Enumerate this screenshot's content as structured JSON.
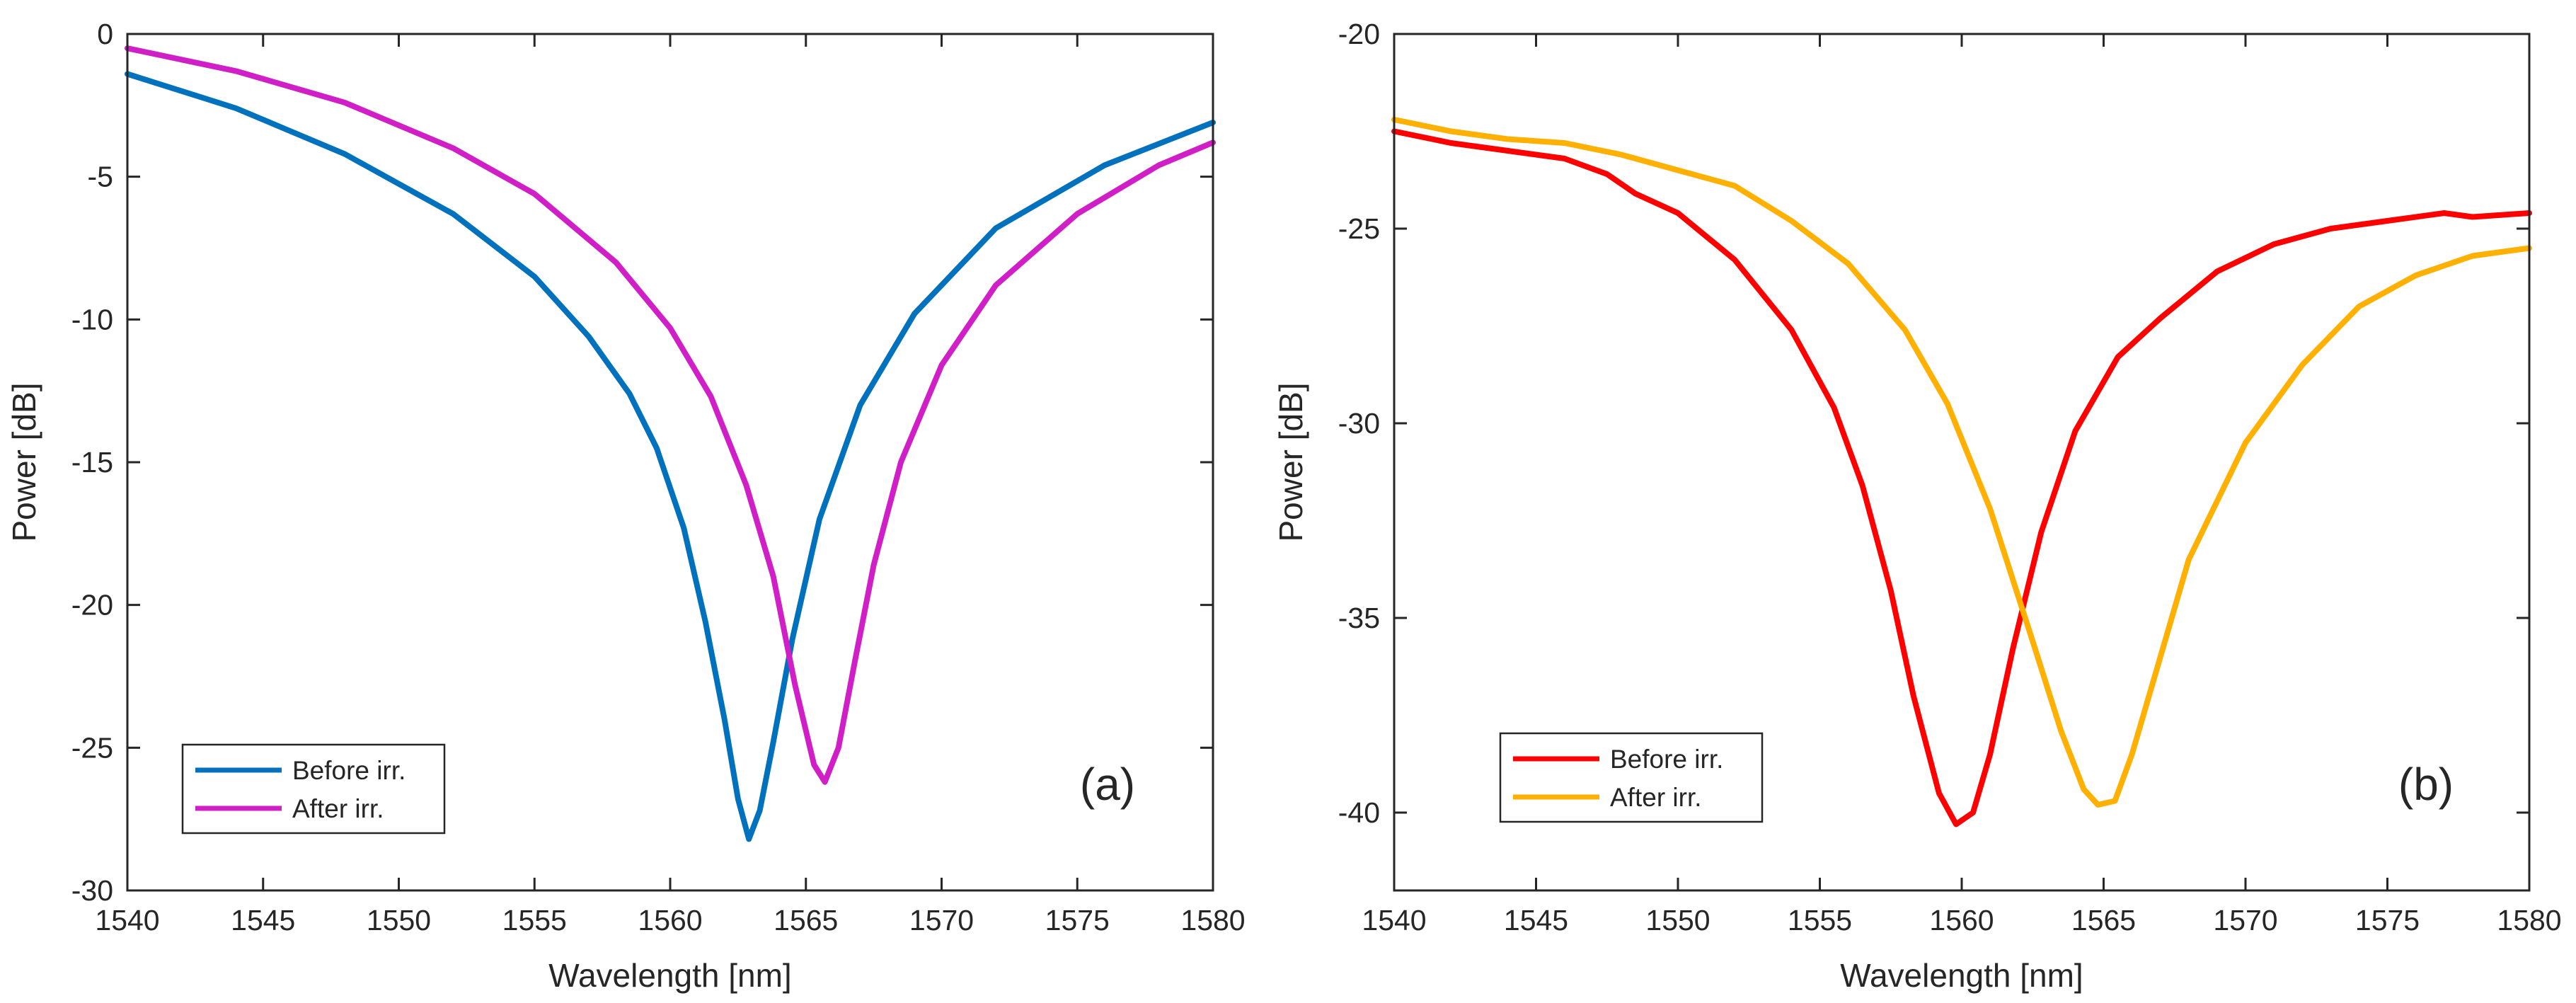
{
  "chart_data": [
    {
      "type": "line",
      "panel_label": "(a)",
      "xlabel": "Wavelength [nm]",
      "ylabel": "Power [dB]",
      "xlim": [
        1540,
        1580
      ],
      "ylim": [
        -30,
        0
      ],
      "xticks": [
        1540,
        1545,
        1550,
        1555,
        1560,
        1565,
        1570,
        1575,
        1580
      ],
      "yticks": [
        0,
        -5,
        -10,
        -15,
        -20,
        -25,
        -30
      ],
      "legend_position": "bottom-left",
      "series": [
        {
          "name": "Before irr.",
          "color": "#0072BD",
          "x": [
            1540,
            1544,
            1548,
            1552,
            1555,
            1557,
            1558.5,
            1559.5,
            1560.5,
            1561.3,
            1562,
            1562.5,
            1562.9,
            1563.3,
            1563.8,
            1564.5,
            1565.5,
            1567,
            1569,
            1572,
            1576,
            1580
          ],
          "y": [
            -1.4,
            -2.6,
            -4.2,
            -6.3,
            -8.5,
            -10.6,
            -12.6,
            -14.5,
            -17.3,
            -20.6,
            -24.0,
            -26.8,
            -28.2,
            -27.2,
            -24.8,
            -21.2,
            -17.0,
            -13.0,
            -9.8,
            -6.8,
            -4.6,
            -3.1
          ]
        },
        {
          "name": "After irr.",
          "color": "#D01FC6",
          "x": [
            1540,
            1544,
            1548,
            1552,
            1555,
            1558,
            1560,
            1561.5,
            1562.8,
            1563.8,
            1564.6,
            1565.3,
            1565.7,
            1566.2,
            1566.8,
            1567.5,
            1568.5,
            1570,
            1572,
            1575,
            1578,
            1580
          ],
          "y": [
            -0.5,
            -1.3,
            -2.4,
            -4.0,
            -5.6,
            -8.0,
            -10.3,
            -12.7,
            -15.8,
            -19.0,
            -22.8,
            -25.6,
            -26.2,
            -25.0,
            -22.0,
            -18.6,
            -15.0,
            -11.6,
            -8.8,
            -6.3,
            -4.6,
            -3.8
          ]
        }
      ]
    },
    {
      "type": "line",
      "panel_label": "(b)",
      "xlabel": "Wavelength [nm]",
      "ylabel": "Power [dB]",
      "xlim": [
        1540,
        1580
      ],
      "ylim": [
        -42,
        -20
      ],
      "xticks": [
        1540,
        1545,
        1550,
        1555,
        1560,
        1565,
        1570,
        1575,
        1580
      ],
      "yticks": [
        -20,
        -25,
        -30,
        -35,
        -40
      ],
      "legend_position": "bottom-left",
      "series": [
        {
          "name": "Before irr.",
          "color": "#FF0000",
          "x": [
            1540,
            1542,
            1544,
            1546,
            1547.5,
            1548.5,
            1550,
            1552,
            1554,
            1555.5,
            1556.5,
            1557.5,
            1558.3,
            1559.2,
            1559.8,
            1560.4,
            1561,
            1561.8,
            1562.8,
            1564,
            1565.5,
            1567,
            1569,
            1571,
            1573,
            1575,
            1577,
            1578,
            1580
          ],
          "y": [
            -22.5,
            -22.8,
            -23.0,
            -23.2,
            -23.6,
            -24.1,
            -24.6,
            -25.8,
            -27.6,
            -29.6,
            -31.6,
            -34.3,
            -37.0,
            -39.5,
            -40.3,
            -40.0,
            -38.5,
            -35.8,
            -32.8,
            -30.2,
            -28.3,
            -27.3,
            -26.1,
            -25.4,
            -25.0,
            -24.8,
            -24.6,
            -24.7,
            -24.6
          ]
        },
        {
          "name": "After irr.",
          "color": "#FFB000",
          "x": [
            1540,
            1542,
            1544,
            1546,
            1548,
            1550,
            1552,
            1554,
            1556,
            1558,
            1559.5,
            1561,
            1562.5,
            1563.5,
            1564.3,
            1564.8,
            1565.4,
            1566,
            1566.8,
            1568,
            1570,
            1572,
            1574,
            1576,
            1578,
            1580
          ],
          "y": [
            -22.2,
            -22.5,
            -22.7,
            -22.8,
            -23.1,
            -23.5,
            -23.9,
            -24.8,
            -25.9,
            -27.6,
            -29.5,
            -32.2,
            -35.6,
            -37.9,
            -39.4,
            -39.8,
            -39.7,
            -38.5,
            -36.5,
            -33.5,
            -30.5,
            -28.5,
            -27.0,
            -26.2,
            -25.7,
            -25.5
          ]
        }
      ]
    }
  ]
}
